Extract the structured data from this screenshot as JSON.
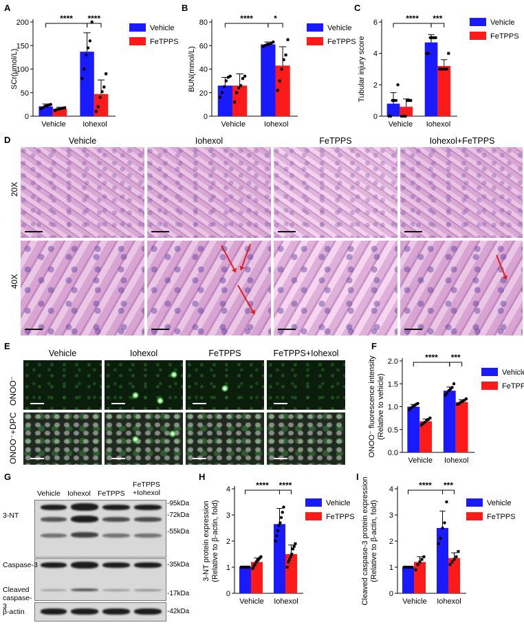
{
  "panel_labels": {
    "A": "A",
    "B": "B",
    "C": "C",
    "D": "D",
    "E": "E",
    "F": "F",
    "G": "G",
    "H": "H",
    "I": "I"
  },
  "colors": {
    "vehicle": "#1a1aff",
    "fetpps": "#ff1a1a"
  },
  "chart_data": [
    {
      "id": "A",
      "type": "bar",
      "categories": [
        "Vehicle",
        "Iohexol"
      ],
      "series": [
        {
          "name": "Vehicle",
          "values": [
            21,
            137
          ],
          "err": [
            5,
            40
          ]
        },
        {
          "name": "FeTPPS",
          "values": [
            16,
            47
          ],
          "err": [
            3,
            30
          ]
        }
      ],
      "points": [
        [
          [
            16,
            18,
            21,
            22,
            24,
            25
          ],
          [
            12,
            14,
            15,
            16,
            17,
            18
          ]
        ],
        [
          [
            80,
            100,
            130,
            145,
            160,
            200
          ],
          [
            10,
            20,
            40,
            52,
            62,
            90
          ]
        ]
      ],
      "title": "",
      "xlabel": "",
      "ylabel": "SCr(µmol/L)",
      "ylim": [
        0,
        200
      ],
      "yticks": [
        0,
        50,
        100,
        150,
        200
      ],
      "sig": [
        {
          "text": "****",
          "from": [
            0,
            0
          ],
          "to": [
            1,
            0
          ]
        },
        {
          "text": "****",
          "from": [
            1,
            0
          ],
          "to": [
            1,
            1
          ]
        }
      ],
      "legend": "top-right"
    },
    {
      "id": "B",
      "type": "bar",
      "categories": [
        "Vehicle",
        "Iohexol"
      ],
      "series": [
        {
          "name": "Vehicle",
          "values": [
            26,
            61
          ],
          "err": [
            7,
            2
          ]
        },
        {
          "name": "FeTPPS",
          "values": [
            26,
            43
          ],
          "err": [
            10,
            16
          ]
        }
      ],
      "points": [
        [
          [
            16,
            20,
            25,
            30,
            33,
            34
          ],
          [
            12,
            20,
            24,
            26,
            32,
            34
          ]
        ],
        [
          [
            59,
            60,
            61,
            61,
            62,
            63
          ],
          [
            22,
            30,
            40,
            48,
            52,
            65
          ]
        ]
      ],
      "title": "",
      "xlabel": "",
      "ylabel": "BUN(mmol/L)",
      "ylim": [
        0,
        80
      ],
      "yticks": [
        0,
        20,
        40,
        60,
        80
      ],
      "sig": [
        {
          "text": "****",
          "from": [
            0,
            0
          ],
          "to": [
            1,
            0
          ]
        },
        {
          "text": "*",
          "from": [
            1,
            0
          ],
          "to": [
            1,
            1
          ]
        }
      ],
      "legend": "top-right"
    },
    {
      "id": "C",
      "type": "bar",
      "categories": [
        "Vehicle",
        "Iohexol"
      ],
      "series": [
        {
          "name": "Vehicle",
          "values": [
            0.8,
            4.7
          ],
          "err": [
            0.7,
            0.5
          ]
        },
        {
          "name": "FeTPPS",
          "values": [
            0.6,
            3.2
          ],
          "err": [
            0.5,
            0.4
          ]
        }
      ],
      "points": [
        [
          [
            0,
            0,
            1,
            1,
            1,
            2
          ],
          [
            0,
            0,
            0,
            1,
            1,
            1
          ]
        ],
        [
          [
            4,
            4,
            5,
            5,
            5,
            5
          ],
          [
            3,
            3,
            3,
            3,
            3,
            4
          ]
        ]
      ],
      "title": "",
      "xlabel": "",
      "ylabel": "Tubular injury score",
      "ylim": [
        0,
        6
      ],
      "yticks": [
        0,
        2,
        4,
        6
      ],
      "sig": [
        {
          "text": "****",
          "from": [
            0,
            0
          ],
          "to": [
            1,
            0
          ]
        },
        {
          "text": "***",
          "from": [
            1,
            0
          ],
          "to": [
            1,
            1
          ]
        }
      ],
      "legend": "top-right"
    },
    {
      "id": "F",
      "type": "bar",
      "categories": [
        "Vehicle",
        "Iohexol"
      ],
      "series": [
        {
          "name": "Vehicle",
          "values": [
            1.0,
            1.35
          ],
          "err": [
            0.05,
            0.08
          ]
        },
        {
          "name": "FeTPPS",
          "values": [
            0.68,
            1.1
          ],
          "err": [
            0.05,
            0.05
          ]
        }
      ],
      "points": [
        [
          [
            0.93,
            0.97,
            1.0,
            1.02,
            1.05,
            1.07
          ],
          [
            0.6,
            0.63,
            0.66,
            0.7,
            0.72,
            0.75
          ]
        ],
        [
          [
            1.25,
            1.3,
            1.35,
            1.38,
            1.42,
            1.5
          ],
          [
            1.05,
            1.07,
            1.1,
            1.12,
            1.14,
            1.17
          ]
        ]
      ],
      "title": "",
      "xlabel": "",
      "ylabel": "ONOO⁻ fluorescence intensity (Relative to vehicle)",
      "ylim": [
        0,
        2.0
      ],
      "yticks": [
        0.0,
        0.5,
        1.0,
        1.5,
        2.0
      ],
      "sig": [
        {
          "text": "****",
          "from": [
            0,
            0
          ],
          "to": [
            1,
            0
          ]
        },
        {
          "text": "***",
          "from": [
            1,
            0
          ],
          "to": [
            1,
            1
          ]
        }
      ],
      "legend": "top-right"
    },
    {
      "id": "H",
      "type": "bar",
      "categories": [
        "Vehicle",
        "Iohexol"
      ],
      "series": [
        {
          "name": "Vehicle",
          "values": [
            1.0,
            2.65
          ],
          "err": [
            0.02,
            0.6
          ]
        },
        {
          "name": "FeTPPS",
          "values": [
            1.2,
            1.5
          ],
          "err": [
            0.15,
            0.35
          ]
        }
      ],
      "points": [
        [
          [
            1,
            1,
            1,
            1,
            1,
            1,
            1,
            1
          ],
          [
            0.95,
            1.05,
            1.1,
            1.2,
            1.25,
            1.3,
            1.35,
            1.4
          ]
        ],
        [
          [
            2.0,
            2.2,
            2.4,
            2.6,
            2.7,
            2.9,
            3.1,
            3.3
          ],
          [
            1.0,
            1.2,
            1.3,
            1.4,
            1.5,
            1.7,
            1.8,
            1.9
          ]
        ]
      ],
      "title": "",
      "xlabel": "",
      "ylabel": "3-NT protein expression (Relative to β-actin, fold)",
      "ylim": [
        0,
        4
      ],
      "yticks": [
        0,
        1,
        2,
        3,
        4
      ],
      "sig": [
        {
          "text": "****",
          "from": [
            0,
            0
          ],
          "to": [
            1,
            0
          ]
        },
        {
          "text": "****",
          "from": [
            1,
            0
          ],
          "to": [
            1,
            1
          ]
        }
      ],
      "legend": "top-right"
    },
    {
      "id": "I",
      "type": "bar",
      "categories": [
        "Vehicle",
        "Iohexol"
      ],
      "series": [
        {
          "name": "Vehicle",
          "values": [
            1.0,
            2.5
          ],
          "err": [
            0.02,
            0.65
          ]
        },
        {
          "name": "FeTPPS",
          "values": [
            1.2,
            1.35
          ],
          "err": [
            0.2,
            0.2
          ]
        }
      ],
      "points": [
        [
          [
            1,
            1,
            1,
            1,
            1
          ],
          [
            0.9,
            1.1,
            1.2,
            1.3,
            1.4
          ]
        ],
        [
          [
            1.9,
            2.1,
            2.5,
            2.7,
            3.5
          ],
          [
            1.1,
            1.2,
            1.3,
            1.4,
            1.6
          ]
        ]
      ],
      "title": "",
      "xlabel": "",
      "ylabel": "Cleaved caspase-3 protein expression (Relative to β-actin, fold)",
      "ylim": [
        0,
        4
      ],
      "yticks": [
        0,
        1,
        2,
        3,
        4
      ],
      "sig": [
        {
          "text": "****",
          "from": [
            0,
            0
          ],
          "to": [
            1,
            0
          ]
        },
        {
          "text": "***",
          "from": [
            1,
            0
          ],
          "to": [
            1,
            1
          ]
        }
      ],
      "legend": "top-right"
    }
  ],
  "histology": {
    "columns": [
      "Vehicle",
      "Iohexol",
      "FeTPPS",
      "Iohexol+FeTPPS"
    ],
    "rows": [
      "20X",
      "40X"
    ]
  },
  "fluorescence": {
    "columns": [
      "Vehicle",
      "Iohexol",
      "FeTPPS",
      "FeTPPS+Iohexol"
    ],
    "rows": [
      "ONOO⁻",
      "ONOO⁻+DPC"
    ]
  },
  "western": {
    "lanes": [
      "Vehicle",
      "Iohexol",
      "FeTPPS",
      "FeTPPS +Iohexol"
    ],
    "proteins": [
      "3-NT",
      "Caspase-3",
      "Cleaved caspase-3",
      "β-actin"
    ],
    "markers": [
      "-95kDa",
      "-72kDa",
      "-55kDa",
      "-35kDa",
      "-17kDa",
      "-42kDa"
    ]
  }
}
